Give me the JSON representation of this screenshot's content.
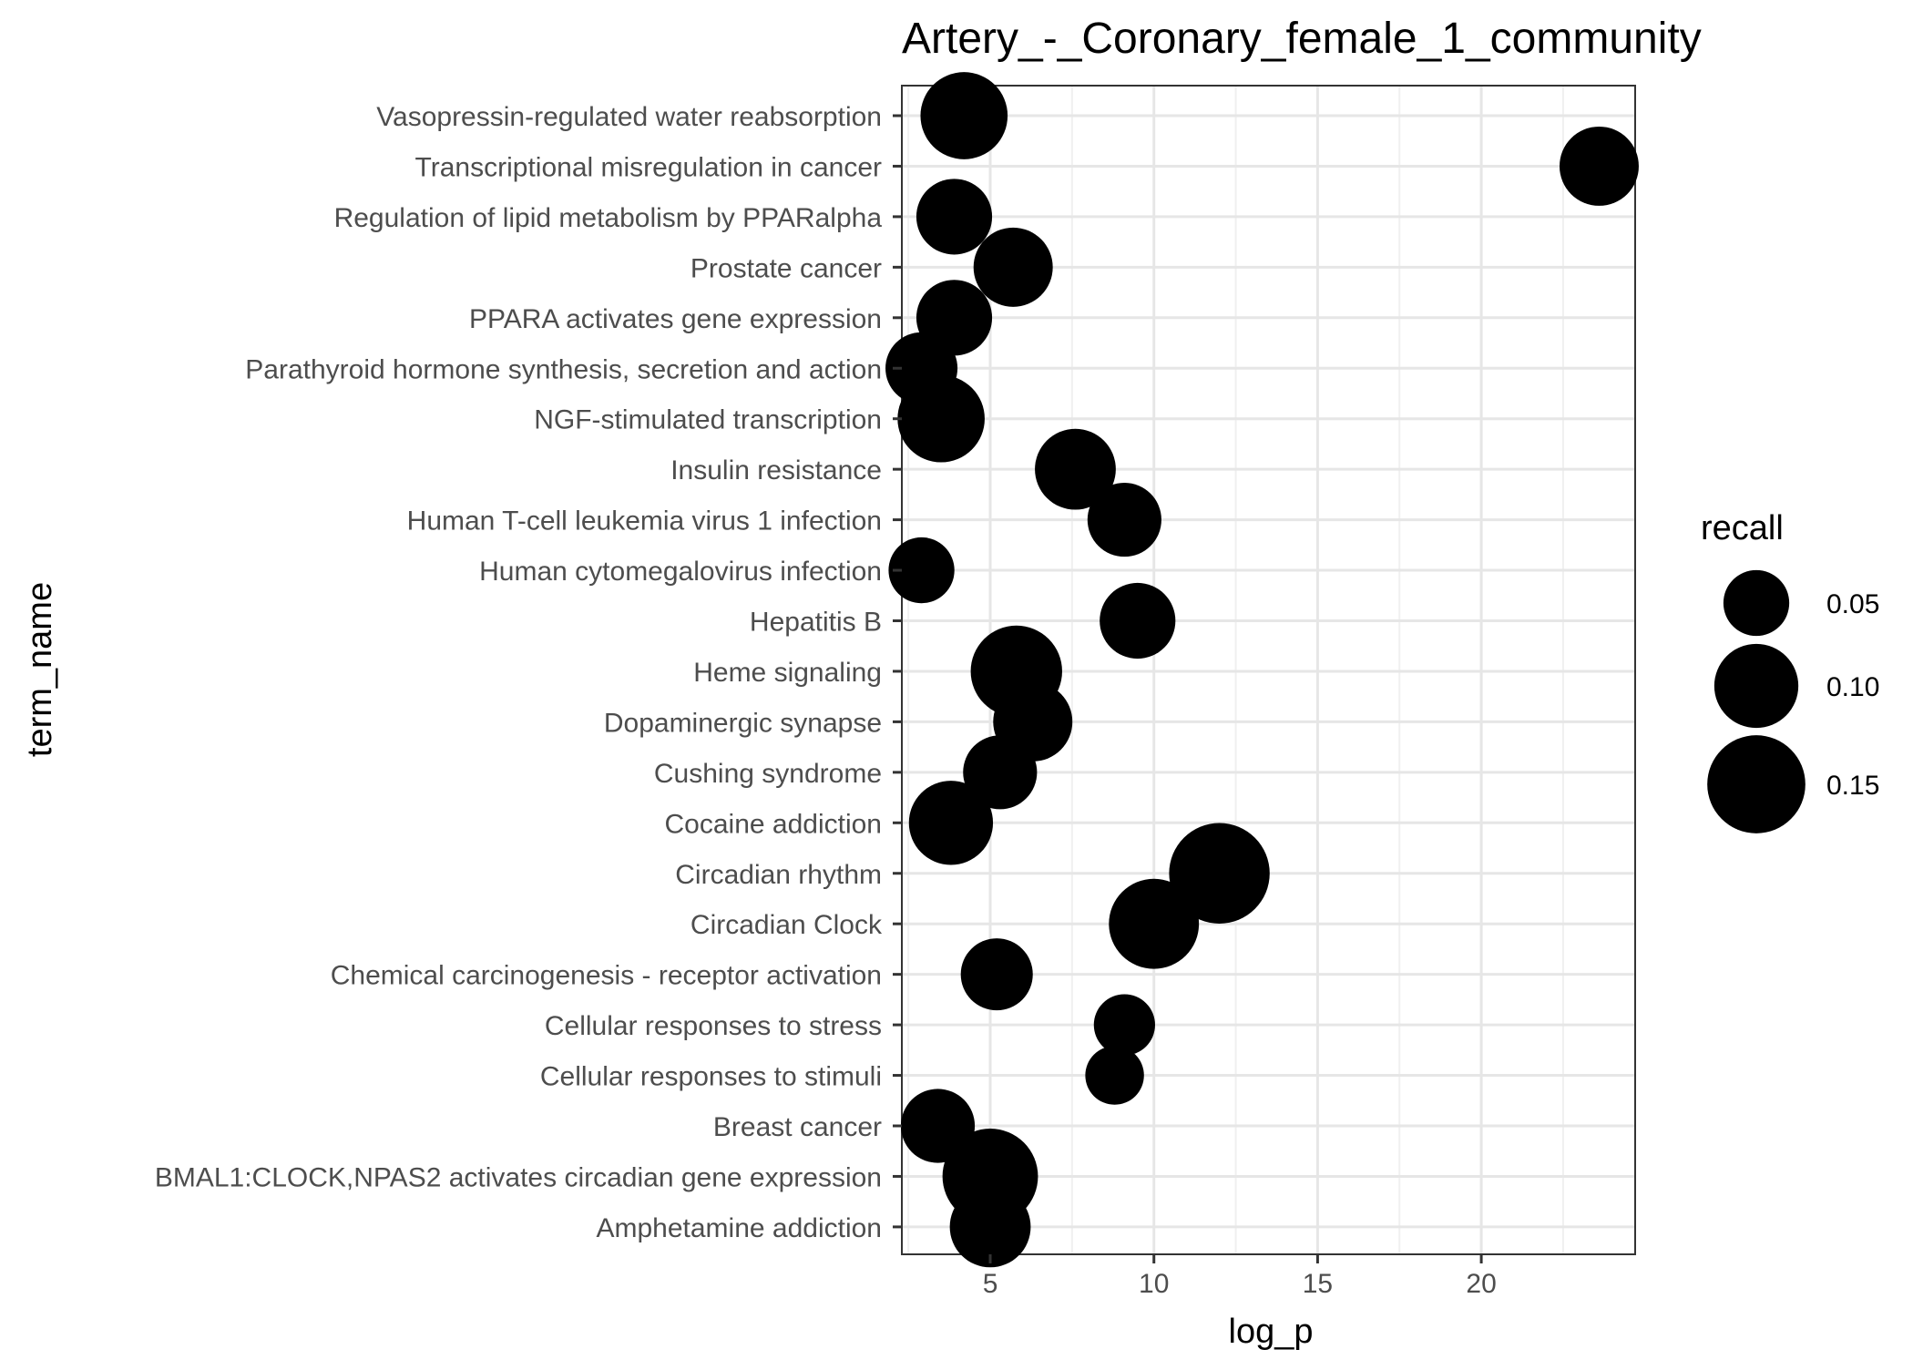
{
  "chart_data": {
    "type": "scatter",
    "title": "Artery_-_Coronary_female_1_community",
    "xlabel": "log_p",
    "ylabel": "term_name",
    "xlim": [
      2.3,
      24.7
    ],
    "xticks": [
      5,
      10,
      15,
      20
    ],
    "grid": true,
    "legend": {
      "title": "recall",
      "placement": "right",
      "entries": [
        {
          "label": "0.05",
          "value": 0.05
        },
        {
          "label": "0.10",
          "value": 0.1
        },
        {
          "label": "0.15",
          "value": 0.15
        }
      ]
    },
    "marker_color": "#000000",
    "categories": [
      "Vasopressin-regulated water reabsorption",
      "Transcriptional misregulation in cancer",
      "Regulation of lipid metabolism by PPARalpha",
      "Prostate cancer",
      "PPARA activates gene expression",
      "Parathyroid hormone synthesis, secretion and action",
      "NGF-stimulated transcription",
      "Insulin resistance",
      "Human T-cell leukemia virus 1 infection",
      "Human cytomegalovirus infection",
      "Hepatitis B",
      "Heme signaling",
      "Dopaminergic synapse",
      "Cushing syndrome",
      "Cocaine addiction",
      "Circadian rhythm",
      "Circadian Clock",
      "Chemical carcinogenesis - receptor activation",
      "Cellular responses to stress",
      "Cellular responses to stimuli",
      "Breast cancer",
      "BMAL1:CLOCK,NPAS2 activates circadian gene expression",
      "Amphetamine addiction"
    ],
    "points": [
      {
        "term": "Vasopressin-regulated water reabsorption",
        "log_p": 4.2,
        "recall": 0.11
      },
      {
        "term": "Transcriptional misregulation in cancer",
        "log_p": 23.6,
        "recall": 0.085
      },
      {
        "term": "Regulation of lipid metabolism by PPARalpha",
        "log_p": 3.9,
        "recall": 0.075
      },
      {
        "term": "Prostate cancer",
        "log_p": 5.7,
        "recall": 0.085
      },
      {
        "term": "PPARA activates gene expression",
        "log_p": 3.9,
        "recall": 0.075
      },
      {
        "term": "Parathyroid hormone synthesis, secretion and action",
        "log_p": 2.9,
        "recall": 0.065
      },
      {
        "term": "NGF-stimulated transcription",
        "log_p": 3.5,
        "recall": 0.11
      },
      {
        "term": "Insulin resistance",
        "log_p": 7.6,
        "recall": 0.09
      },
      {
        "term": "Human T-cell leukemia virus 1 infection",
        "log_p": 9.1,
        "recall": 0.07
      },
      {
        "term": "Human cytomegalovirus infection",
        "log_p": 2.9,
        "recall": 0.05
      },
      {
        "term": "Hepatitis B",
        "log_p": 9.5,
        "recall": 0.075
      },
      {
        "term": "Heme signaling",
        "log_p": 5.8,
        "recall": 0.125
      },
      {
        "term": "Dopaminergic synapse",
        "log_p": 6.3,
        "recall": 0.085
      },
      {
        "term": "Cushing syndrome",
        "log_p": 5.3,
        "recall": 0.07
      },
      {
        "term": "Cocaine addiction",
        "log_p": 3.8,
        "recall": 0.1
      },
      {
        "term": "Circadian rhythm",
        "log_p": 12.0,
        "recall": 0.16
      },
      {
        "term": "Circadian Clock",
        "log_p": 10.0,
        "recall": 0.12
      },
      {
        "term": "Chemical carcinogenesis - receptor activation",
        "log_p": 5.2,
        "recall": 0.065
      },
      {
        "term": "Cellular responses to stress",
        "log_p": 9.1,
        "recall": 0.04
      },
      {
        "term": "Cellular responses to stimuli",
        "log_p": 8.8,
        "recall": 0.035
      },
      {
        "term": "Breast cancer",
        "log_p": 3.4,
        "recall": 0.07
      },
      {
        "term": "BMAL1:CLOCK,NPAS2 activates circadian gene expression",
        "log_p": 5.0,
        "recall": 0.14
      },
      {
        "term": "Amphetamine addiction",
        "log_p": 5.0,
        "recall": 0.09
      }
    ]
  }
}
